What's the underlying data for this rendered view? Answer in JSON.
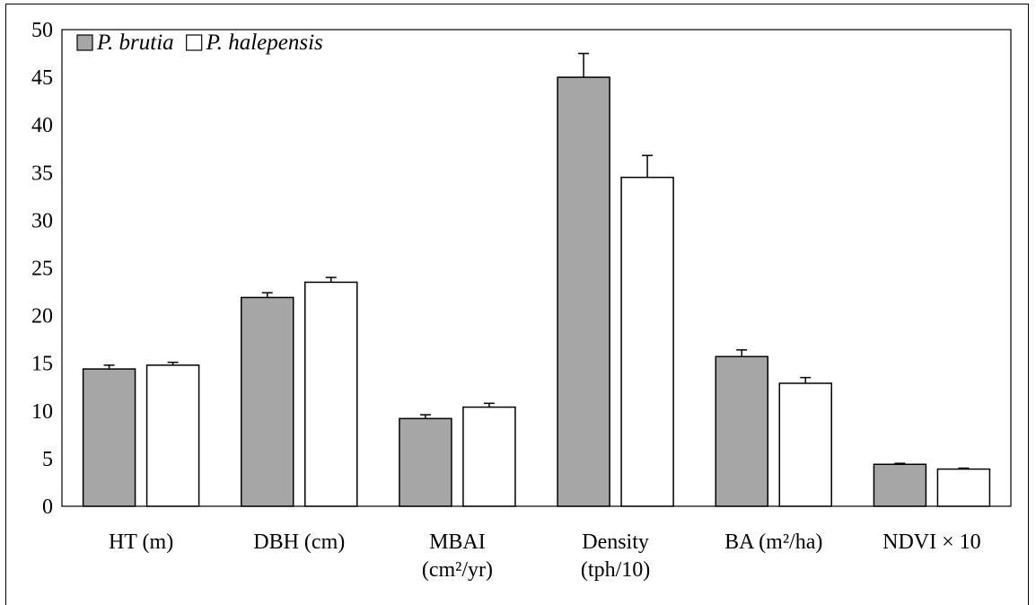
{
  "chart_data": {
    "type": "bar",
    "categories": [
      [
        "HT (m)"
      ],
      [
        "DBH (cm)"
      ],
      [
        "MBAI",
        "(cm²/yr)"
      ],
      [
        "Density",
        "(tph/10)"
      ],
      [
        "BA (m²/ha)"
      ],
      [
        "NDVI × 10"
      ]
    ],
    "series": [
      {
        "name": "P. brutia",
        "color": "#a6a6a6",
        "values": [
          14.4,
          21.9,
          9.2,
          45.0,
          15.7,
          4.4
        ],
        "errors": [
          0.4,
          0.5,
          0.4,
          2.5,
          0.7,
          0.1
        ]
      },
      {
        "name": "P. halepensis",
        "color": "#ffffff",
        "values": [
          14.8,
          23.5,
          10.4,
          34.5,
          12.9,
          3.9
        ],
        "errors": [
          0.3,
          0.5,
          0.4,
          2.3,
          0.6,
          0.1
        ]
      }
    ],
    "ylim": [
      0,
      50
    ],
    "yticks": [
      0,
      5,
      10,
      15,
      20,
      25,
      30,
      35,
      40,
      45,
      50
    ],
    "legend_position": "top-left",
    "grid": false
  }
}
